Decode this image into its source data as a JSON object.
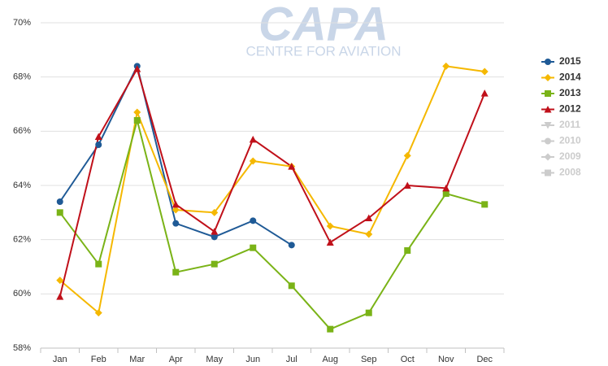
{
  "chart_data": {
    "type": "line",
    "watermark": {
      "title": "CAPA",
      "subtitle": "CENTRE FOR AVIATION"
    },
    "categories": [
      "Jan",
      "Feb",
      "Mar",
      "Apr",
      "May",
      "Jun",
      "Jul",
      "Aug",
      "Sep",
      "Oct",
      "Nov",
      "Dec"
    ],
    "ylim": [
      58,
      70
    ],
    "yticks": [
      {
        "value": 58,
        "label": "58%"
      },
      {
        "value": 60,
        "label": "60%"
      },
      {
        "value": 62,
        "label": "62%"
      },
      {
        "value": 64,
        "label": "64%"
      },
      {
        "value": 66,
        "label": "66%"
      },
      {
        "value": 68,
        "label": "68%"
      },
      {
        "value": 70,
        "label": "70%"
      }
    ],
    "grid": true,
    "legend": "right",
    "series": [
      {
        "name": "2015",
        "color": "#1f5a96",
        "marker": "circle",
        "visible": true,
        "values": [
          63.4,
          65.5,
          68.4,
          62.6,
          62.1,
          62.7,
          61.8,
          null,
          null,
          null,
          null,
          null
        ]
      },
      {
        "name": "2014",
        "color": "#f5b800",
        "marker": "diamond",
        "visible": true,
        "values": [
          60.5,
          59.3,
          66.7,
          63.1,
          63.0,
          64.9,
          64.7,
          62.5,
          62.2,
          65.1,
          68.4,
          68.2
        ]
      },
      {
        "name": "2013",
        "color": "#7ab317",
        "marker": "square",
        "visible": true,
        "values": [
          63.0,
          61.1,
          66.4,
          60.8,
          61.1,
          61.7,
          60.3,
          58.7,
          59.3,
          61.6,
          63.7,
          63.3
        ]
      },
      {
        "name": "2012",
        "color": "#c0101a",
        "marker": "triangle",
        "visible": true,
        "values": [
          59.9,
          65.8,
          68.3,
          63.3,
          62.3,
          65.7,
          64.7,
          61.9,
          62.8,
          64.0,
          63.9,
          67.4
        ]
      },
      {
        "name": "2011",
        "color": "#cccccc",
        "marker": "triangle-down",
        "visible": false,
        "values": [
          null,
          null,
          null,
          null,
          null,
          null,
          null,
          null,
          null,
          null,
          null,
          null
        ]
      },
      {
        "name": "2010",
        "color": "#cccccc",
        "marker": "circle",
        "visible": false,
        "values": [
          null,
          null,
          null,
          null,
          null,
          null,
          null,
          null,
          null,
          null,
          null,
          null
        ]
      },
      {
        "name": "2009",
        "color": "#cccccc",
        "marker": "diamond",
        "visible": false,
        "values": [
          null,
          null,
          null,
          null,
          null,
          null,
          null,
          null,
          null,
          null,
          null,
          null
        ]
      },
      {
        "name": "2008",
        "color": "#cccccc",
        "marker": "square",
        "visible": false,
        "values": [
          null,
          null,
          null,
          null,
          null,
          null,
          null,
          null,
          null,
          null,
          null,
          null
        ]
      }
    ]
  }
}
